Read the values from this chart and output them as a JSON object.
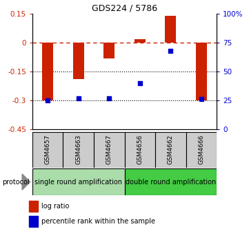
{
  "title": "GDS224 / 5786",
  "samples": [
    "GSM4657",
    "GSM4663",
    "GSM4667",
    "GSM4656",
    "GSM4662",
    "GSM4666"
  ],
  "log_ratios": [
    -0.3,
    -0.19,
    -0.08,
    0.02,
    0.14,
    -0.3
  ],
  "percentile_ranks": [
    25,
    27,
    27,
    40,
    68,
    26
  ],
  "ylim_left": [
    -0.45,
    0.15
  ],
  "ylim_right": [
    0,
    100
  ],
  "left_ticks": [
    0.15,
    0,
    -0.15,
    -0.3,
    -0.45
  ],
  "left_tick_labels": [
    "0.15",
    "0",
    "-0.15",
    "-0.3",
    "-0.45"
  ],
  "right_ticks": [
    100,
    75,
    50,
    25,
    0
  ],
  "right_tick_labels": [
    "100%",
    "75",
    "50",
    "25",
    "0"
  ],
  "protocols": [
    {
      "label": "single round amplification",
      "n_samples": 3,
      "color": "#aaddaa"
    },
    {
      "label": "double round amplification",
      "n_samples": 3,
      "color": "#44cc44"
    }
  ],
  "bar_color": "#cc2200",
  "point_color": "#0000cc",
  "dashed_line_color": "#cc2200",
  "dotted_line_color": "#000000",
  "background_color": "#ffffff",
  "protocol_label": "protocol",
  "legend": [
    {
      "label": "log ratio",
      "color": "#cc2200"
    },
    {
      "label": "percentile rank within the sample",
      "color": "#0000cc"
    }
  ],
  "sample_box_color": "#cccccc",
  "title_fontsize": 9,
  "tick_fontsize": 7.5,
  "label_fontsize": 6.5,
  "legend_fontsize": 7,
  "protocol_fontsize": 7
}
